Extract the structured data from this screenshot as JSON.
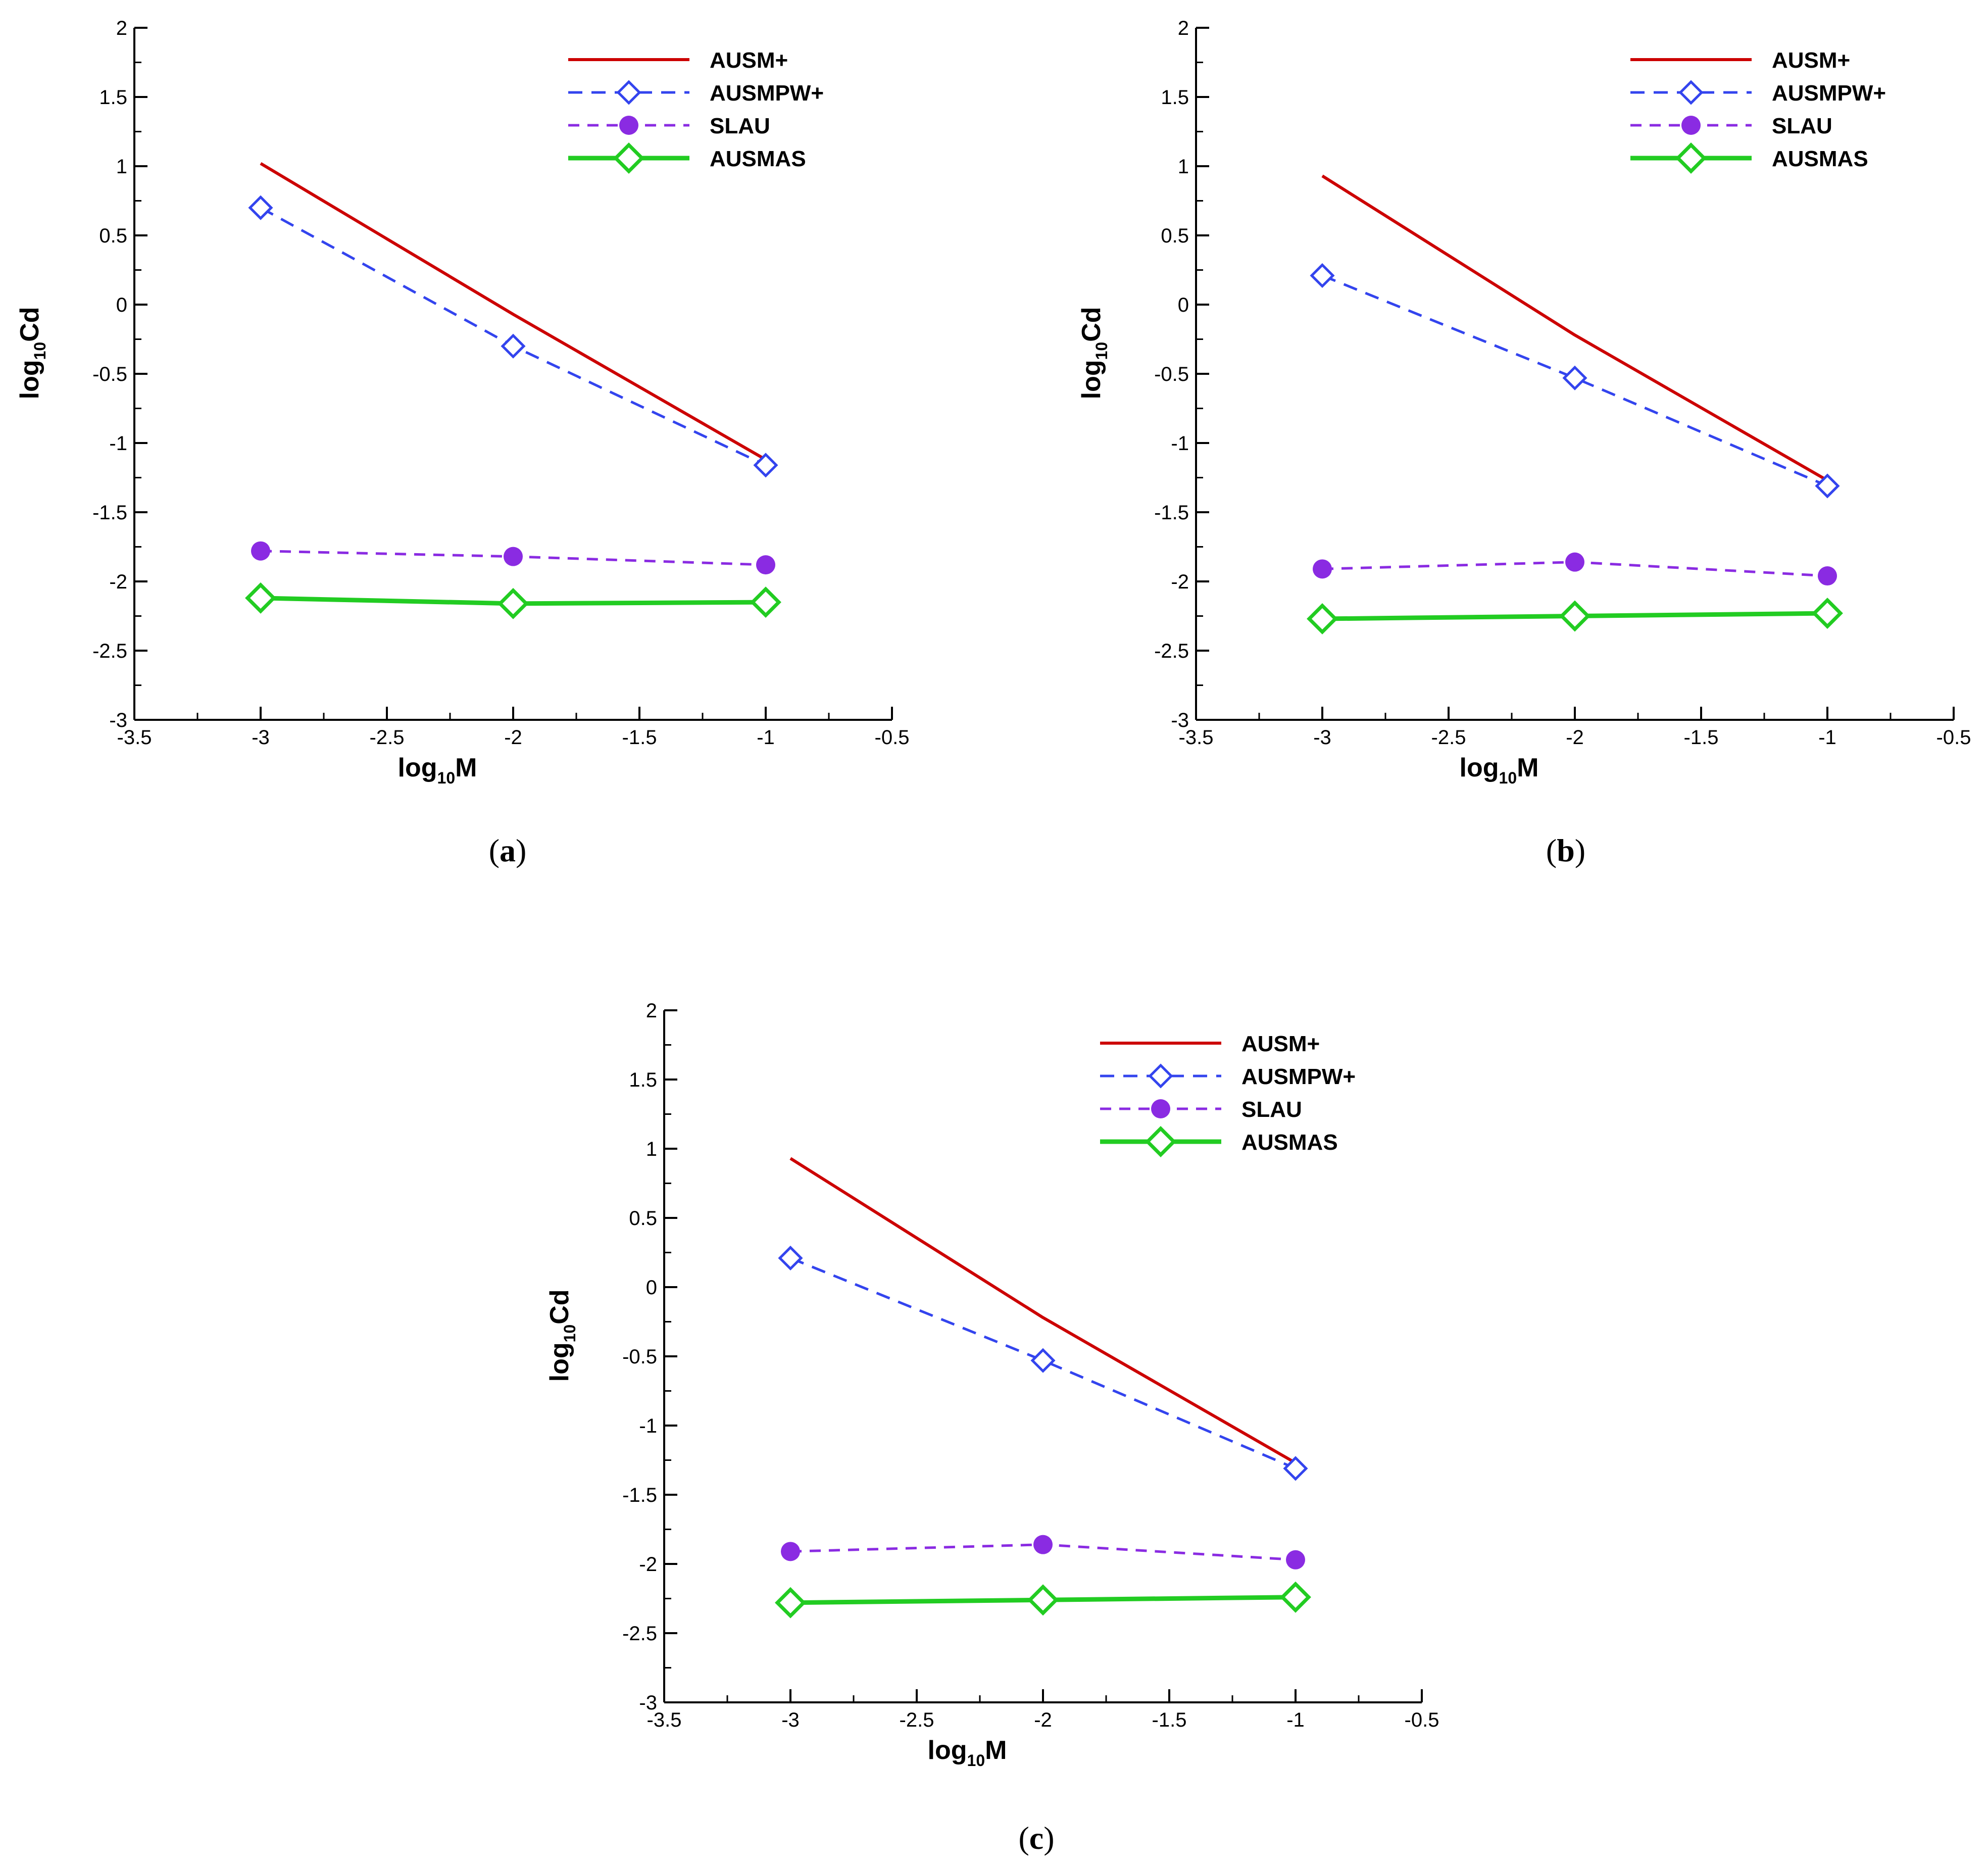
{
  "colors": {
    "ausm_plus": "#cc0000",
    "ausmpw_plus": "#3344ee",
    "slau": "#8a2be2",
    "ausmas": "#22cc22",
    "axis": "#000000"
  },
  "axis_text": {
    "x_main": "log",
    "x_sub": "10",
    "x_end": "M",
    "y_main": "log",
    "y_sub": "10",
    "y_end": "Cd"
  },
  "chart_data": [
    {
      "id": "a",
      "type": "line",
      "caption": "(a)",
      "caption_open": "(",
      "caption_letter": "a",
      "caption_close": ")",
      "xlabel": "log10M",
      "ylabel": "log10Cd",
      "xlim": [
        -3.5,
        -0.5
      ],
      "ylim": [
        -3,
        2
      ],
      "x_ticks": [
        "-3.5",
        "-3",
        "-2.5",
        "-2",
        "-1.5",
        "-1",
        "-0.5"
      ],
      "y_ticks": [
        "2",
        "1.5",
        "1",
        "0.5",
        "0",
        "-0.5",
        "-1",
        "-1.5",
        "-2",
        "-2.5",
        "-3"
      ],
      "legend_position": "top-right",
      "series": [
        {
          "name": "AUSM+",
          "x": [
            -3,
            -2,
            -1
          ],
          "y": [
            1.02,
            -0.07,
            -1.12
          ]
        },
        {
          "name": "AUSMPW+",
          "x": [
            -3,
            -2,
            -1
          ],
          "y": [
            0.7,
            -0.3,
            -1.16
          ]
        },
        {
          "name": "SLAU",
          "x": [
            -3,
            -2,
            -1
          ],
          "y": [
            -1.78,
            -1.82,
            -1.88
          ]
        },
        {
          "name": "AUSMAS",
          "x": [
            -3,
            -2,
            -1
          ],
          "y": [
            -2.12,
            -2.16,
            -2.15
          ]
        }
      ]
    },
    {
      "id": "b",
      "type": "line",
      "caption": "(b)",
      "caption_open": "(",
      "caption_letter": "b",
      "caption_close": ")",
      "xlabel": "log10M",
      "ylabel": "log10Cd",
      "xlim": [
        -3.5,
        -0.5
      ],
      "ylim": [
        -3,
        2
      ],
      "x_ticks": [
        "-3.5",
        "-3",
        "-2.5",
        "-2",
        "-1.5",
        "-1",
        "-0.5"
      ],
      "y_ticks": [
        "2",
        "1.5",
        "1",
        "0.5",
        "0",
        "-0.5",
        "-1",
        "-1.5",
        "-2",
        "-2.5",
        "-3"
      ],
      "legend_position": "top-right",
      "series": [
        {
          "name": "AUSM+",
          "x": [
            -3,
            -2,
            -1
          ],
          "y": [
            0.93,
            -0.22,
            -1.27
          ]
        },
        {
          "name": "AUSMPW+",
          "x": [
            -3,
            -2,
            -1
          ],
          "y": [
            0.21,
            -0.53,
            -1.31
          ]
        },
        {
          "name": "SLAU",
          "x": [
            -3,
            -2,
            -1
          ],
          "y": [
            -1.91,
            -1.86,
            -1.96
          ]
        },
        {
          "name": "AUSMAS",
          "x": [
            -3,
            -2,
            -1
          ],
          "y": [
            -2.27,
            -2.25,
            -2.23
          ]
        }
      ]
    },
    {
      "id": "c",
      "type": "line",
      "caption": "(c)",
      "caption_open": "(",
      "caption_letter": "c",
      "caption_close": ")",
      "xlabel": "log10M",
      "ylabel": "log10Cd",
      "xlim": [
        -3.5,
        -0.5
      ],
      "ylim": [
        -3,
        2
      ],
      "x_ticks": [
        "-3.5",
        "-3",
        "-2.5",
        "-2",
        "-1.5",
        "-1",
        "-0.5"
      ],
      "y_ticks": [
        "2",
        "1.5",
        "1",
        "0.5",
        "0",
        "-0.5",
        "-1",
        "-1.5",
        "-2",
        "-2.5",
        "-3"
      ],
      "legend_position": "top-right",
      "series": [
        {
          "name": "AUSM+",
          "x": [
            -3,
            -2,
            -1
          ],
          "y": [
            0.93,
            -0.22,
            -1.27
          ]
        },
        {
          "name": "AUSMPW+",
          "x": [
            -3,
            -2,
            -1
          ],
          "y": [
            0.21,
            -0.53,
            -1.31
          ]
        },
        {
          "name": "SLAU",
          "x": [
            -3,
            -2,
            -1
          ],
          "y": [
            -1.91,
            -1.86,
            -1.97
          ]
        },
        {
          "name": "AUSMAS",
          "x": [
            -3,
            -2,
            -1
          ],
          "y": [
            -2.28,
            -2.26,
            -2.24
          ]
        }
      ]
    }
  ]
}
